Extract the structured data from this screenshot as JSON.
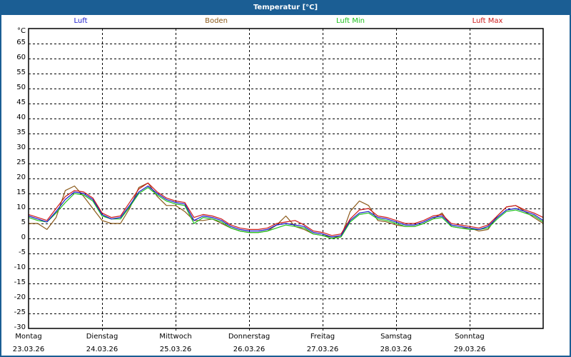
{
  "window": {
    "title": "Temperatur [°C]",
    "border_color": "#1b5e94"
  },
  "legend": [
    {
      "label": "Luft",
      "color": "#1a1acc"
    },
    {
      "label": "Boden",
      "color": "#8b5a1a"
    },
    {
      "label": "Luft Min",
      "color": "#1cc01c"
    },
    {
      "label": "Luft Max",
      "color": "#cc1a1a"
    }
  ],
  "y_axis": {
    "unit": "°C",
    "ticks": [
      "65",
      "60",
      "55",
      "50",
      "45",
      "40",
      "35",
      "30",
      "25",
      "20",
      "15",
      "10",
      "5",
      "0",
      "-5",
      "-10",
      "-15",
      "-20",
      "-25",
      "-30"
    ]
  },
  "x_axis": {
    "days": [
      {
        "weekday": "Montag",
        "date": "23.03.26"
      },
      {
        "weekday": "Dienstag",
        "date": "24.03.26"
      },
      {
        "weekday": "Mittwoch",
        "date": "25.03.26"
      },
      {
        "weekday": "Donnerstag",
        "date": "26.03.26"
      },
      {
        "weekday": "Freitag",
        "date": "27.03.26"
      },
      {
        "weekday": "Samstag",
        "date": "28.03.26"
      },
      {
        "weekday": "Sonntag",
        "date": "29.03.26"
      }
    ]
  },
  "chart_data": {
    "type": "line",
    "title": "Temperatur [°C]",
    "xlabel": "",
    "ylabel": "°C",
    "ylim": [
      -30,
      65
    ],
    "grid": true,
    "legend_position": "top",
    "x_step_hours": 3,
    "x_start": "23.03.26 00:00",
    "categories": [
      "Montag 23.03.26",
      "Dienstag 24.03.26",
      "Mittwoch 25.03.26",
      "Donnerstag 26.03.26",
      "Freitag 27.03.26",
      "Samstag 28.03.26",
      "Sonntag 29.03.26"
    ],
    "series": [
      {
        "name": "Luft",
        "color": "#1a1acc",
        "values": [
          7.5,
          6.5,
          5.5,
          9,
          13,
          15.5,
          15,
          13,
          8,
          6.5,
          7,
          11,
          15.5,
          17.5,
          15,
          13,
          12,
          11.5,
          6,
          7.5,
          7,
          6,
          4,
          3,
          2.5,
          2.5,
          3,
          4.5,
          5,
          4.5,
          4,
          2,
          1.5,
          0.5,
          1,
          6,
          8.5,
          9,
          7,
          6.5,
          5.5,
          4.5,
          4.5,
          5.5,
          7,
          7.5,
          4.5,
          4,
          3.5,
          3,
          4,
          7,
          9.5,
          10,
          9,
          8,
          6
        ]
      },
      {
        "name": "Boden",
        "color": "#8b5a1a",
        "values": [
          5,
          5,
          3,
          7,
          16,
          17.5,
          14,
          10,
          6,
          5,
          5,
          10,
          17,
          18.5,
          14,
          11,
          11,
          9,
          6,
          6,
          6.5,
          5,
          3.5,
          2.5,
          2,
          2,
          2.5,
          4.5,
          7.5,
          4,
          3,
          1.5,
          1,
          0.5,
          0.5,
          9,
          12.5,
          11,
          6,
          5.5,
          4.5,
          4,
          4,
          5,
          6.5,
          8.5,
          4,
          3.5,
          3.5,
          2.5,
          3,
          7.5,
          10.5,
          11,
          9,
          7,
          5
        ]
      },
      {
        "name": "Luft Min",
        "color": "#1cc01c",
        "values": [
          7,
          6,
          5.5,
          8.5,
          12,
          15,
          14.5,
          12.5,
          7.5,
          6.5,
          6.5,
          10.5,
          15,
          17,
          14.5,
          12.5,
          11.5,
          11,
          5,
          7,
          6.5,
          5.5,
          3.5,
          2.5,
          2,
          2,
          2.5,
          3.5,
          4.5,
          4,
          3.5,
          1.5,
          1,
          0,
          0.5,
          5.5,
          8,
          8.5,
          6.5,
          6,
          5,
          4,
          4,
          5,
          6.5,
          7,
          4,
          3.5,
          3,
          3,
          3.5,
          6.5,
          9,
          9.5,
          8.5,
          7.5,
          5.5
        ]
      },
      {
        "name": "Luft Max",
        "color": "#cc1a1a",
        "values": [
          8,
          7,
          6,
          10,
          14,
          16,
          15.5,
          13.5,
          8.5,
          7,
          7.5,
          12,
          16.5,
          18.5,
          15.5,
          13.5,
          12.5,
          12,
          7,
          8,
          7.5,
          6.5,
          4.5,
          3.5,
          3,
          3,
          3.5,
          5,
          5.5,
          6,
          4.5,
          2.5,
          2,
          1,
          1.5,
          6.5,
          9.5,
          10,
          7.5,
          7,
          6,
          5,
          5,
          6,
          7.5,
          8,
          5,
          4.5,
          4,
          3.5,
          4.5,
          7.5,
          10.5,
          11,
          9.5,
          8.5,
          7
        ]
      }
    ]
  }
}
